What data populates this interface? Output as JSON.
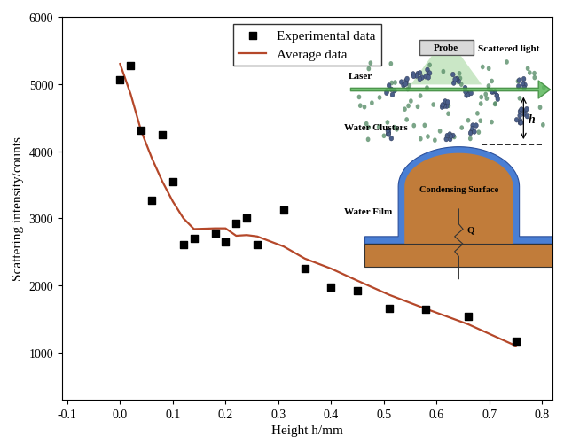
{
  "chart_data": {
    "type": "scatter",
    "x_label": "Height h/mm",
    "y_label": "Scattering intensity/counts",
    "series": [
      {
        "name": "Experimental data",
        "type": "scatter",
        "marker": "square",
        "color": "#000000",
        "x": [
          0.0,
          0.02,
          0.04,
          0.06,
          0.08,
          0.1,
          0.12,
          0.14,
          0.18,
          0.2,
          0.22,
          0.24,
          0.26,
          0.31,
          0.35,
          0.4,
          0.45,
          0.51,
          0.58,
          0.66,
          0.75
        ],
        "values": [
          5060,
          5270,
          4310,
          3270,
          4240,
          3550,
          2610,
          2700,
          2780,
          2650,
          2920,
          3010,
          2610,
          3120,
          2250,
          1970,
          1920,
          1660,
          1640,
          1540,
          1170
        ]
      },
      {
        "name": "Average data",
        "type": "line",
        "line_style": "solid",
        "color": "#b5482a",
        "x": [
          0.0,
          0.02,
          0.04,
          0.06,
          0.08,
          0.1,
          0.12,
          0.14,
          0.18,
          0.2,
          0.22,
          0.24,
          0.26,
          0.31,
          0.35,
          0.4,
          0.45,
          0.51,
          0.58,
          0.66,
          0.75
        ],
        "values": [
          5300,
          4850,
          4300,
          3900,
          3550,
          3250,
          3000,
          2840,
          2850,
          2850,
          2740,
          2750,
          2730,
          2580,
          2400,
          2250,
          2070,
          1860,
          1650,
          1420,
          1100
        ]
      }
    ],
    "xlim": [
      -0.11,
      0.82
    ],
    "xticks": [
      -0.1,
      0.0,
      0.1,
      0.2,
      0.3,
      0.4,
      0.5,
      0.6,
      0.7,
      0.8
    ],
    "ylim": [
      300,
      6000
    ],
    "yticks": [
      1000,
      2000,
      3000,
      4000,
      5000,
      6000
    ],
    "grid": false,
    "legend": "upper center",
    "annotations": [
      "Probe",
      "Scattered light",
      "Laser",
      "Water Clusters",
      "h",
      "Water Film",
      "Condensing Surface",
      "Q"
    ]
  }
}
